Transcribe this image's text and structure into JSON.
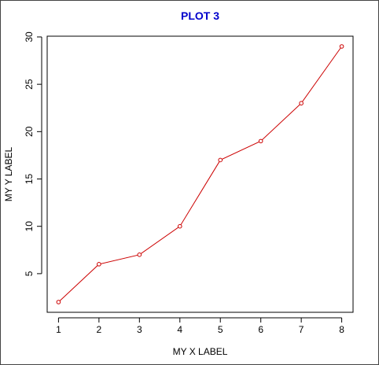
{
  "chart_data": {
    "type": "line",
    "title": "PLOT 3",
    "xlabel": "MY X LABEL",
    "ylabel": "MY Y LABEL",
    "x": [
      1,
      2,
      3,
      4,
      5,
      6,
      7,
      8
    ],
    "y": [
      2,
      6,
      7,
      10,
      17,
      19,
      23,
      29
    ],
    "xlim": [
      0.72,
      8.28
    ],
    "ylim": [
      0.92,
      30.08
    ],
    "xticks": [
      "1",
      "2",
      "3",
      "4",
      "5",
      "6",
      "7",
      "8"
    ],
    "yticks": [
      "5",
      "10",
      "15",
      "20",
      "25",
      "30"
    ],
    "grid": false,
    "legend": "none",
    "marker": "open-circle"
  },
  "colors": {
    "title": "#0000cc",
    "series": "#cc0000",
    "axis": "#000000"
  }
}
